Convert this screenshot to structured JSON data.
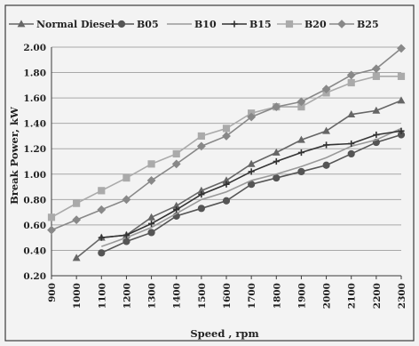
{
  "chart_data": {
    "type": "line",
    "title": "",
    "xlabel": "Speed , rpm",
    "ylabel": "Break Power, kW",
    "x": [
      900,
      1000,
      1100,
      1200,
      1300,
      1400,
      1500,
      1600,
      1700,
      1800,
      1900,
      2000,
      2100,
      2200,
      2300
    ],
    "xtick_labels": [
      "900",
      "1000",
      "1100",
      "1200",
      "1300",
      "1400",
      "1500",
      "1600",
      "1700",
      "1800",
      "1900",
      "2000",
      "2100",
      "2200",
      "2300"
    ],
    "ytick_labels": [
      "0.20",
      "0.40",
      "0.60",
      "0.80",
      "1.00",
      "1.20",
      "1.40",
      "1.60",
      "1.80",
      "2.00"
    ],
    "ylim": [
      0.2,
      2.0
    ],
    "grid": true,
    "legend_position": "top",
    "series": [
      {
        "name": "Normal Diesel",
        "marker": "triangle",
        "color": "#666666",
        "x": [
          1000,
          1100,
          1200,
          1300,
          1400,
          1500,
          1600,
          1700,
          1800,
          1900,
          2000,
          2100,
          2200,
          2300
        ],
        "values": [
          0.34,
          0.5,
          0.52,
          0.66,
          0.75,
          0.87,
          0.95,
          1.08,
          1.17,
          1.27,
          1.34,
          1.47,
          1.5,
          1.58
        ]
      },
      {
        "name": "B05",
        "marker": "circle",
        "color": "#555555",
        "x": [
          1100,
          1200,
          1300,
          1400,
          1500,
          1600,
          1700,
          1800,
          1900,
          2000,
          2100,
          2200,
          2300
        ],
        "values": [
          0.38,
          0.47,
          0.54,
          0.67,
          0.73,
          0.79,
          0.92,
          0.97,
          1.02,
          1.07,
          1.16,
          1.25,
          1.31
        ]
      },
      {
        "name": "B10",
        "marker": "none",
        "color": "#999999",
        "x": [
          1100,
          1200,
          1300,
          1400,
          1500,
          1600,
          1700,
          1800,
          1900,
          2000,
          2100,
          2200,
          2300
        ],
        "values": [
          0.43,
          0.5,
          0.58,
          0.69,
          0.8,
          0.86,
          0.95,
          1.0,
          1.06,
          1.13,
          1.22,
          1.27,
          1.36
        ]
      },
      {
        "name": "B15",
        "marker": "plus",
        "color": "#333333",
        "x": [
          1100,
          1200,
          1300,
          1400,
          1500,
          1600,
          1700,
          1800,
          1900,
          2000,
          2100,
          2200,
          2300
        ],
        "values": [
          0.5,
          0.52,
          0.61,
          0.72,
          0.84,
          0.92,
          1.02,
          1.1,
          1.17,
          1.23,
          1.24,
          1.31,
          1.34
        ]
      },
      {
        "name": "B20",
        "marker": "square",
        "color": "#aaaaaa",
        "x": [
          900,
          1000,
          1100,
          1200,
          1300,
          1400,
          1500,
          1600,
          1700,
          1800,
          1900,
          2000,
          2100,
          2200,
          2300
        ],
        "values": [
          0.66,
          0.77,
          0.87,
          0.97,
          1.08,
          1.16,
          1.3,
          1.36,
          1.48,
          1.53,
          1.53,
          1.64,
          1.72,
          1.77,
          1.77
        ]
      },
      {
        "name": "B25",
        "marker": "diamond",
        "color": "#888888",
        "x": [
          900,
          1000,
          1100,
          1200,
          1300,
          1400,
          1500,
          1600,
          1700,
          1800,
          1900,
          2000,
          2100,
          2200,
          2300
        ],
        "values": [
          0.56,
          0.64,
          0.72,
          0.8,
          0.95,
          1.08,
          1.22,
          1.3,
          1.45,
          1.53,
          1.57,
          1.67,
          1.78,
          1.83,
          1.99
        ]
      }
    ]
  }
}
